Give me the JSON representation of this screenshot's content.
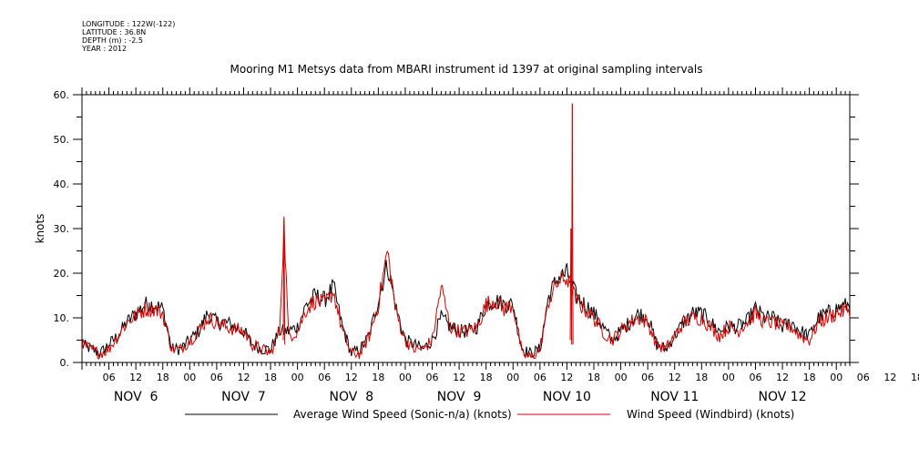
{
  "meta": {
    "longitude": "LONGITUDE : 122W(-122)",
    "latitude": "LATITUDE : 36.8N",
    "depth": "DEPTH (m) : -2.5",
    "year": "YEAR : 2012"
  },
  "chart_data": {
    "type": "line",
    "title": "Mooring M1 Metsys data from MBARI instrument id 1397 at original sampling intervals",
    "ylabel": "knots",
    "xlabel": "",
    "ylim": [
      0,
      60
    ],
    "yticks": [
      0,
      10,
      20,
      30,
      40,
      50,
      60
    ],
    "ytick_labels": [
      "0.",
      "10.",
      "20.",
      "30.",
      "40.",
      "50.",
      "60."
    ],
    "xlim_hours": [
      0,
      171
    ],
    "x_hour_ticks": [
      "06",
      "12",
      "18",
      "00",
      "06",
      "12",
      "18",
      "00",
      "06",
      "12",
      "18",
      "00",
      "06",
      "12",
      "18",
      "00",
      "06",
      "12",
      "18",
      "00",
      "06",
      "12",
      "18",
      "00",
      "06",
      "12",
      "18",
      "00",
      "06",
      "12",
      "18",
      "00"
    ],
    "date_labels": [
      "NOV  6",
      "NOV  7",
      "NOV  8",
      "NOV  9",
      "NOV 10",
      "NOV 11",
      "NOV 12"
    ],
    "grid": false,
    "legend_position": "bottom",
    "series": [
      {
        "name": "Average Wind Speed (Sonic-n/a) (knots)",
        "color": "#000000",
        "x": [
          0,
          2,
          4,
          6,
          8,
          10,
          14,
          16,
          18,
          20,
          22,
          24,
          26,
          28,
          30,
          32,
          36,
          38,
          40,
          42,
          44,
          46,
          48,
          50,
          52,
          54,
          56,
          58,
          60,
          62,
          64,
          66,
          68,
          70,
          72,
          74,
          76,
          78,
          80,
          82,
          84,
          86,
          88,
          90,
          92,
          94,
          96,
          98,
          100,
          102,
          104,
          106,
          108,
          110,
          112,
          114,
          116,
          118,
          120,
          122,
          124,
          126,
          128,
          130,
          132,
          134,
          136,
          138,
          140,
          142,
          144,
          146,
          148,
          150,
          152,
          154,
          156,
          158,
          160,
          162,
          164,
          166,
          168,
          171
        ],
        "values": [
          4,
          3,
          2,
          4,
          6,
          9,
          13,
          13,
          12,
          3,
          3,
          5,
          7,
          11,
          9,
          9,
          7,
          4,
          3,
          3,
          7,
          7,
          8,
          13,
          15,
          14,
          17,
          8,
          2,
          3,
          6,
          14,
          22,
          12,
          5,
          4,
          3,
          5,
          10,
          8,
          7,
          7,
          8,
          13,
          14,
          13,
          13,
          3,
          2,
          3,
          15,
          19,
          20,
          15,
          13,
          11,
          8,
          5,
          7,
          9,
          11,
          10,
          4,
          3,
          6,
          9,
          11,
          11,
          9,
          7,
          8,
          8,
          9,
          12,
          10,
          10,
          8,
          9,
          7,
          6,
          10,
          11,
          12,
          13
        ]
      },
      {
        "name": "Wind Speed (Windbird) (knots)",
        "color": "#d40000",
        "x": [
          0,
          2,
          4,
          6,
          8,
          10,
          14,
          16,
          18,
          20,
          22,
          24,
          26,
          28,
          30,
          32,
          36,
          38,
          40,
          42,
          44,
          45,
          46,
          48,
          50,
          52,
          54,
          56,
          58,
          60,
          62,
          64,
          66,
          68,
          70,
          72,
          74,
          76,
          78,
          80,
          82,
          84,
          86,
          88,
          90,
          92,
          94,
          96,
          98,
          100,
          102,
          104,
          106,
          108,
          110,
          112,
          114,
          116,
          118,
          120,
          122,
          124,
          126,
          128,
          130,
          132,
          134,
          136,
          138,
          140,
          142,
          144,
          146,
          148,
          150,
          152,
          154,
          156,
          158,
          160,
          162,
          164,
          166,
          168,
          171
        ],
        "values": [
          4,
          3,
          2,
          3,
          6,
          9,
          12,
          12,
          11,
          3,
          3,
          5,
          7,
          10,
          9,
          8,
          7,
          4,
          3,
          2,
          7,
          31,
          6,
          7,
          12,
          14,
          13,
          16,
          7,
          2,
          2,
          6,
          13,
          25,
          11,
          5,
          3,
          3,
          5,
          17,
          8,
          7,
          7,
          8,
          13,
          14,
          12,
          13,
          2,
          1,
          3,
          14,
          18,
          19,
          14,
          12,
          10,
          7,
          5,
          7,
          9,
          10,
          9,
          4,
          3,
          6,
          9,
          10,
          10,
          8,
          6,
          8,
          7,
          9,
          11,
          9,
          9,
          8,
          8,
          6,
          5,
          9,
          10,
          11,
          12
        ]
      }
    ],
    "spikes": [
      {
        "series": 1,
        "x": 45,
        "y": 32
      },
      {
        "series": 1,
        "x": 109.2,
        "y": 58
      },
      {
        "series": 1,
        "x": 108.9,
        "y": 30
      }
    ]
  }
}
